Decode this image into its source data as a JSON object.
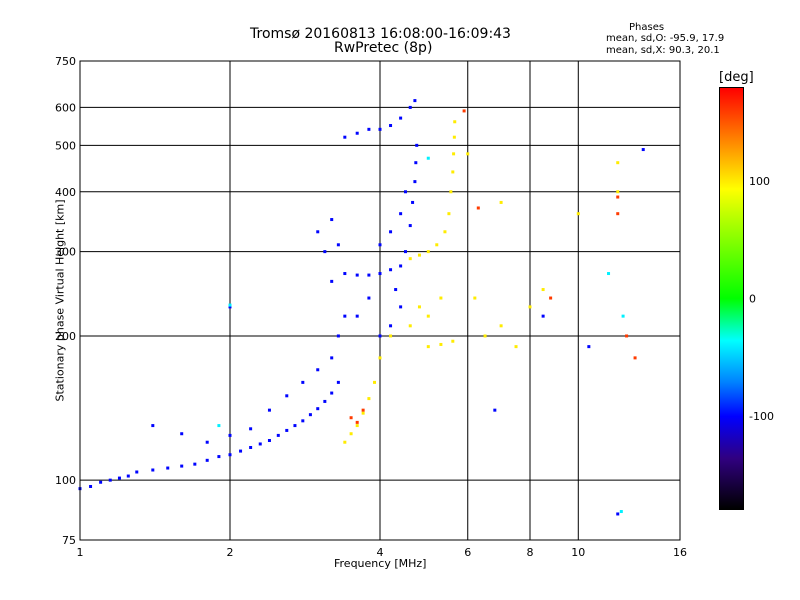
{
  "title": {
    "line1": "Tromsø 20160813 16:08:00-16:09:43",
    "line2": "RwPretec (8p)"
  },
  "phases": {
    "header": "Phases",
    "o_stats": "mean, sd,O: -95.9, 17.9",
    "x_stats": "mean, sd,X: 90.3, 20.1"
  },
  "colorbar": {
    "unit": "[deg]",
    "ticks": [
      "100",
      "0",
      "-100"
    ],
    "tick_values": [
      100,
      0,
      -100
    ],
    "range": [
      -180,
      180
    ],
    "colormap": "rainbow (black-purple-blue-cyan-green-yellow-orange-red)"
  },
  "chart_data": {
    "type": "scatter",
    "xlabel": "Frequency [MHz]",
    "ylabel": "Stationary phase Virtual Height [km]",
    "xscale": "log",
    "yscale": "log",
    "xlim": [
      1,
      16
    ],
    "ylim": [
      75,
      750
    ],
    "xticks": [
      1,
      2,
      4,
      6,
      8,
      10,
      16
    ],
    "xtick_labels": [
      "1",
      "2",
      "4",
      "6",
      "8",
      "10",
      "16"
    ],
    "yticks": [
      75,
      100,
      200,
      300,
      400,
      500,
      600,
      750
    ],
    "ytick_labels": [
      "75",
      "100",
      "200",
      "300",
      "400",
      "500",
      "600",
      "750"
    ],
    "grid": true,
    "series": [
      {
        "color_phase_deg": -100,
        "points": [
          [
            1.0,
            96
          ],
          [
            1.05,
            97
          ],
          [
            1.1,
            99
          ],
          [
            1.15,
            100
          ],
          [
            1.2,
            101
          ],
          [
            1.25,
            102
          ],
          [
            1.3,
            104
          ],
          [
            1.4,
            105
          ],
          [
            1.5,
            106
          ],
          [
            1.6,
            107
          ],
          [
            1.7,
            108
          ],
          [
            1.8,
            110
          ],
          [
            1.9,
            112
          ],
          [
            2.0,
            113
          ],
          [
            2.1,
            115
          ],
          [
            2.2,
            117
          ],
          [
            2.3,
            119
          ],
          [
            2.4,
            121
          ],
          [
            2.5,
            124
          ],
          [
            2.6,
            127
          ],
          [
            2.7,
            130
          ],
          [
            2.8,
            133
          ],
          [
            2.9,
            137
          ],
          [
            3.0,
            141
          ],
          [
            3.1,
            146
          ],
          [
            3.2,
            152
          ],
          [
            3.3,
            160
          ],
          [
            1.4,
            130
          ],
          [
            1.6,
            125
          ],
          [
            1.8,
            120
          ],
          [
            2.0,
            124
          ],
          [
            2.2,
            128
          ],
          [
            2.4,
            140
          ],
          [
            2.6,
            150
          ],
          [
            2.8,
            160
          ],
          [
            3.0,
            170
          ],
          [
            3.2,
            180
          ],
          [
            3.3,
            200
          ],
          [
            3.4,
            220
          ],
          [
            3.2,
            260
          ],
          [
            3.4,
            270
          ],
          [
            3.6,
            268
          ],
          [
            3.8,
            268
          ],
          [
            4.0,
            270
          ],
          [
            4.2,
            275
          ],
          [
            4.4,
            280
          ],
          [
            4.5,
            300
          ],
          [
            4.6,
            340
          ],
          [
            4.65,
            380
          ],
          [
            4.7,
            420
          ],
          [
            4.72,
            460
          ],
          [
            4.74,
            500
          ],
          [
            3.2,
            350
          ],
          [
            3.0,
            330
          ],
          [
            3.1,
            300
          ],
          [
            3.3,
            310
          ],
          [
            3.4,
            520
          ],
          [
            3.6,
            530
          ],
          [
            3.8,
            540
          ],
          [
            4.0,
            540
          ],
          [
            4.2,
            550
          ],
          [
            4.4,
            570
          ],
          [
            4.6,
            600
          ],
          [
            4.7,
            620
          ],
          [
            4.0,
            310
          ],
          [
            4.2,
            330
          ],
          [
            4.4,
            360
          ],
          [
            4.5,
            400
          ],
          [
            4.3,
            250
          ],
          [
            4.4,
            230
          ],
          [
            4.2,
            210
          ],
          [
            3.6,
            220
          ],
          [
            3.8,
            240
          ],
          [
            4.0,
            200
          ],
          [
            2.0,
            230
          ],
          [
            8.5,
            220
          ],
          [
            10.5,
            190
          ],
          [
            12.0,
            85
          ],
          [
            13.5,
            490
          ],
          [
            6.8,
            140
          ]
        ]
      },
      {
        "color_phase_deg": 100,
        "points": [
          [
            3.4,
            120
          ],
          [
            3.5,
            125
          ],
          [
            3.6,
            130
          ],
          [
            3.7,
            138
          ],
          [
            3.8,
            148
          ],
          [
            3.9,
            160
          ],
          [
            4.0,
            180
          ],
          [
            4.2,
            200
          ],
          [
            4.6,
            290
          ],
          [
            4.8,
            295
          ],
          [
            5.0,
            300
          ],
          [
            5.2,
            310
          ],
          [
            5.4,
            330
          ],
          [
            5.5,
            360
          ],
          [
            5.55,
            400
          ],
          [
            5.6,
            440
          ],
          [
            5.62,
            480
          ],
          [
            5.64,
            520
          ],
          [
            5.65,
            560
          ],
          [
            5.0,
            190
          ],
          [
            5.3,
            192
          ],
          [
            5.6,
            195
          ],
          [
            5.0,
            220
          ],
          [
            5.3,
            240
          ],
          [
            4.6,
            210
          ],
          [
            4.8,
            230
          ],
          [
            6.2,
            240
          ],
          [
            6.5,
            200
          ],
          [
            7.0,
            210
          ],
          [
            7.5,
            190
          ],
          [
            8.0,
            230
          ],
          [
            8.5,
            250
          ],
          [
            6.0,
            480
          ],
          [
            7.0,
            380
          ],
          [
            10.0,
            360
          ],
          [
            12.0,
            400
          ],
          [
            12.0,
            460
          ]
        ]
      },
      {
        "color_phase_deg": 160,
        "points": [
          [
            3.5,
            135
          ],
          [
            3.6,
            132
          ],
          [
            3.7,
            140
          ],
          [
            5.9,
            590
          ],
          [
            6.3,
            370
          ],
          [
            8.8,
            240
          ],
          [
            12.0,
            390
          ],
          [
            12.0,
            360
          ],
          [
            12.5,
            200
          ],
          [
            13.0,
            180
          ]
        ]
      },
      {
        "color_phase_deg": -40,
        "points": [
          [
            2.0,
            232
          ],
          [
            1.9,
            130
          ],
          [
            5.0,
            470
          ],
          [
            11.5,
            270
          ],
          [
            12.3,
            220
          ],
          [
            12.2,
            86
          ]
        ]
      }
    ]
  }
}
